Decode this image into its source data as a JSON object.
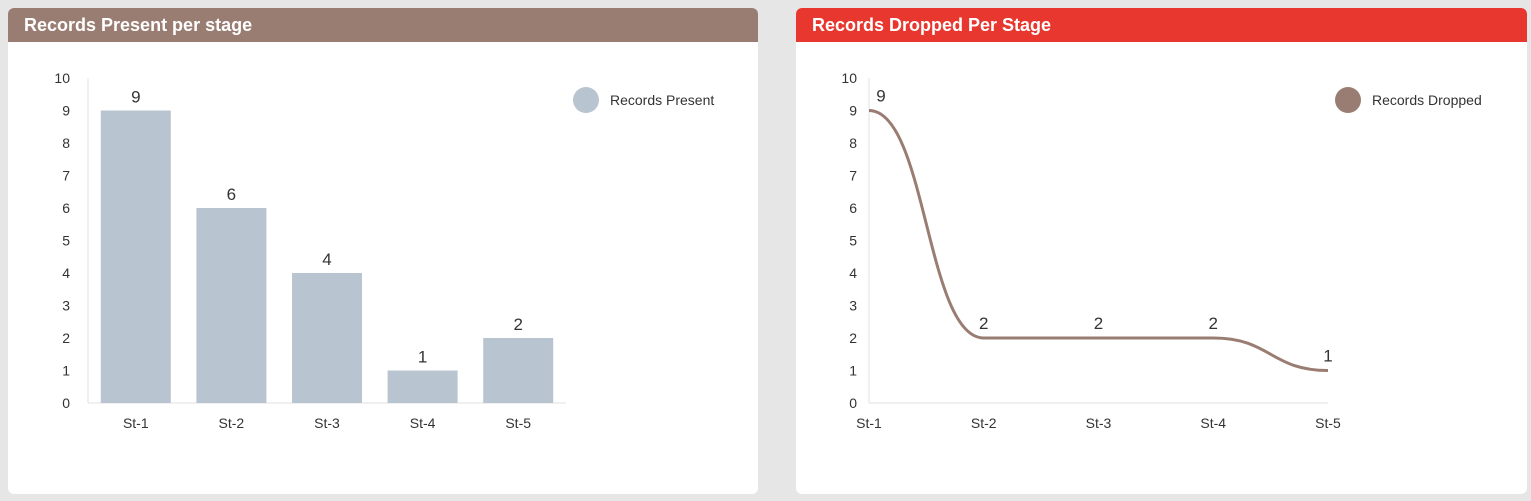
{
  "panels": {
    "present": {
      "title": "Records Present per stage",
      "header_color": "#9a7d72",
      "legend_label": "Records Present",
      "series_color": "#b8c4cf"
    },
    "dropped": {
      "title": "Records Dropped Per Stage",
      "header_color": "#e8372f",
      "legend_label": "Records Dropped",
      "series_color": "#9a7d72"
    }
  },
  "chart_data": [
    {
      "type": "bar",
      "title": "Records Present per stage",
      "categories": [
        "St-1",
        "St-2",
        "St-3",
        "St-4",
        "St-5"
      ],
      "series": [
        {
          "name": "Records Present",
          "values": [
            9,
            6,
            4,
            1,
            2
          ]
        }
      ],
      "yticks": [
        0,
        1,
        2,
        3,
        4,
        5,
        6,
        7,
        8,
        9,
        10
      ],
      "ylim": [
        0,
        10
      ],
      "legend": "top-right",
      "grid": false
    },
    {
      "type": "line",
      "title": "Records Dropped Per Stage",
      "categories": [
        "St-1",
        "St-2",
        "St-3",
        "St-4",
        "St-5"
      ],
      "series": [
        {
          "name": "Records Dropped",
          "values": [
            9,
            2,
            2,
            2,
            1
          ]
        }
      ],
      "yticks": [
        0,
        1,
        2,
        3,
        4,
        5,
        6,
        7,
        8,
        9,
        10
      ],
      "ylim": [
        0,
        10
      ],
      "legend": "top-right",
      "grid": false
    }
  ]
}
